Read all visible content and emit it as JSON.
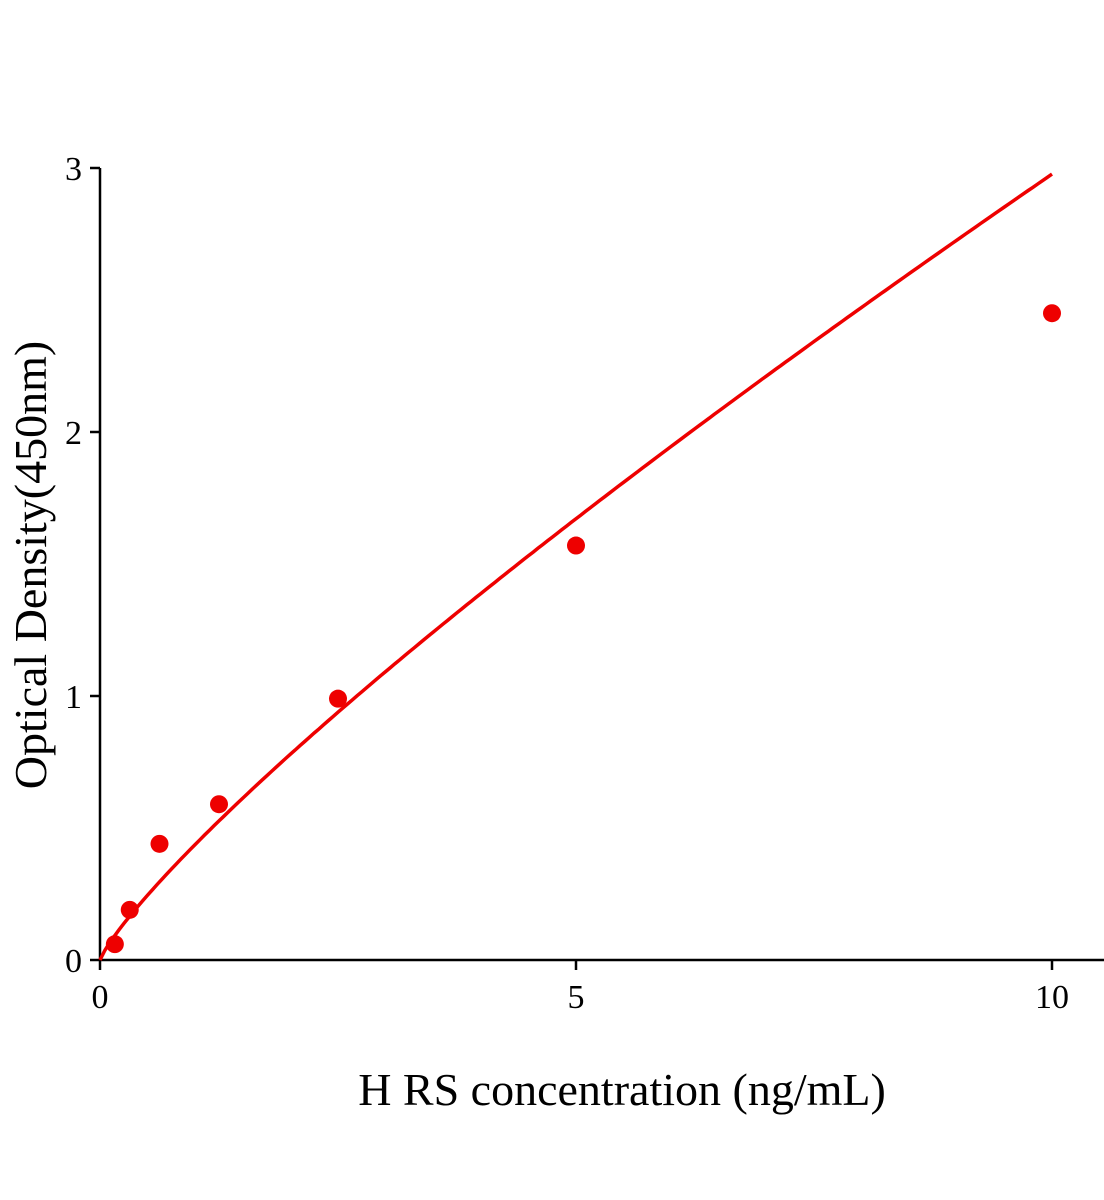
{
  "chart_data": {
    "type": "scatter",
    "title": "",
    "xlabel": "H RS concentration (ng/mL)",
    "ylabel": "Optical Density(450nm)",
    "xlim": [
      0,
      10.5
    ],
    "ylim": [
      0,
      3
    ],
    "xticks": [
      "0",
      "5",
      "10"
    ],
    "yticks": [
      "0",
      "1",
      "2",
      "3"
    ],
    "grid": false,
    "legend": "none",
    "color": "#ee0000",
    "fit_curve": true,
    "series": [
      {
        "x": [
          0.156,
          0.3125,
          0.625,
          1.25,
          2.5,
          5,
          10
        ],
        "y": [
          0.06,
          0.19,
          0.44,
          0.59,
          0.99,
          1.57,
          2.45
        ]
      }
    ]
  }
}
